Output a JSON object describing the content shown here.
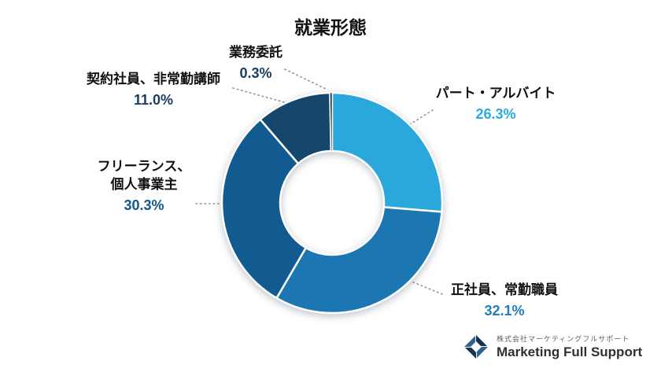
{
  "title": "就業形態",
  "chart_data": {
    "type": "pie",
    "donut": true,
    "title": "就業形態",
    "units": "%",
    "total": 100,
    "legend_position": "around",
    "segments": [
      {
        "label": "パート・アルバイト",
        "value": 26.3,
        "pct_label": "26.3%",
        "color": "#2aa7db",
        "pct_color": "#29abe2"
      },
      {
        "label": "正社員、常勤職員",
        "value": 32.1,
        "pct_label": "32.1%",
        "color": "#1b76b2",
        "pct_color": "#1e7ec0"
      },
      {
        "label": "フリーランス、個人事業主",
        "label_lines": [
          "フリーランス、",
          "個人事業主"
        ],
        "value": 30.3,
        "pct_label": "30.3%",
        "color": "#115b90",
        "pct_color": "#14568e"
      },
      {
        "label": "契約社員、非常勤講師",
        "value": 11.0,
        "pct_label": "11.0%",
        "color": "#15466c",
        "pct_color": "#1a3f63"
      },
      {
        "label": "業務委託",
        "value": 0.3,
        "pct_label": "0.3%",
        "color": "#0c2d47",
        "pct_color": "#1a3f63"
      }
    ]
  },
  "footer": {
    "company_jp": "株式会社マーケティングフルサポート",
    "company_en": "Marketing Full Support"
  }
}
